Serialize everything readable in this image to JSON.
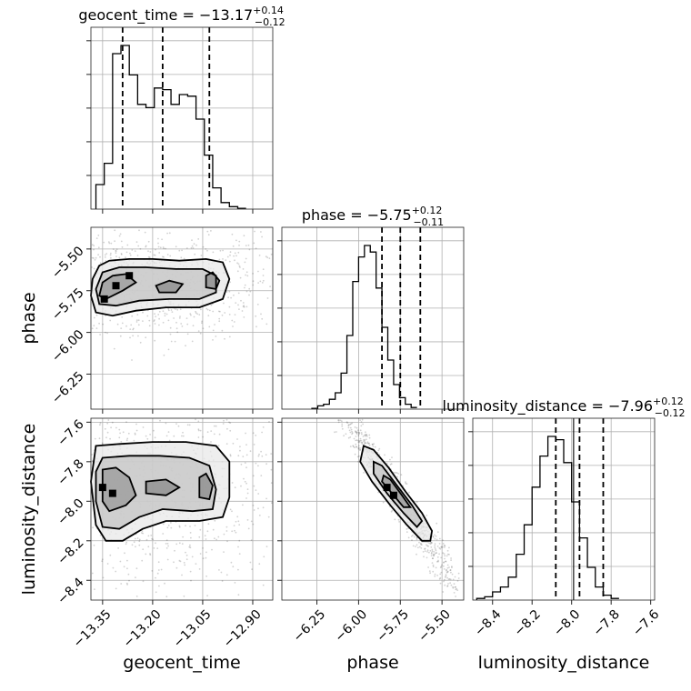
{
  "chart_data": {
    "type": "corner",
    "parameters": [
      {
        "name": "geocent_time",
        "label": "geocent_time",
        "title": {
          "lhs": "geocent_time = ",
          "value": "−13.17",
          "plus": "+0.14",
          "minus": "−0.12"
        },
        "range": [
          -13.385,
          -12.84
        ],
        "ticks": [
          -13.35,
          -13.2,
          -13.05,
          -12.9
        ],
        "tick_labels": [
          "−13.35",
          "−13.20",
          "−13.05",
          "−12.90"
        ],
        "quantiles": [
          -13.29,
          -13.17,
          -13.03
        ],
        "truth": null,
        "hist_edges_start": -13.37,
        "hist_bin_width": 0.025,
        "hist_counts": [
          0.15,
          0.28,
          0.95,
          1.0,
          0.82,
          0.64,
          0.62,
          0.74,
          0.73,
          0.64,
          0.7,
          0.69,
          0.55,
          0.33,
          0.13,
          0.04,
          0.015,
          0.005
        ]
      },
      {
        "name": "phase",
        "label": "phase",
        "title": {
          "lhs": "phase = ",
          "value": "−5.75",
          "plus": "+0.12",
          "minus": "−0.11"
        },
        "range": [
          -6.46,
          -5.37
        ],
        "ticks": [
          -6.25,
          -6.0,
          -5.75,
          -5.5
        ],
        "tick_labels": [
          "−6.25",
          "−6.00",
          "−5.75",
          "−5.50"
        ],
        "quantiles": [
          -5.86,
          -5.75,
          -5.63
        ],
        "truth": null,
        "hist_edges_start": -6.28,
        "hist_bin_width": 0.035,
        "hist_counts": [
          0.005,
          0.02,
          0.03,
          0.06,
          0.1,
          0.22,
          0.45,
          0.78,
          0.93,
          1.0,
          0.96,
          0.74,
          0.5,
          0.3,
          0.15,
          0.07,
          0.03,
          0.01
        ]
      },
      {
        "name": "luminosity_distance",
        "label": "luminosity_distance",
        "title": {
          "lhs": "luminosity_distance = ",
          "value": "−7.96",
          "plus": "+0.12",
          "minus": "−0.12"
        },
        "range": [
          -8.5,
          -7.58
        ],
        "ticks": [
          -8.4,
          -8.2,
          -8.0,
          -7.8,
          -7.6
        ],
        "tick_labels": [
          "−8.4",
          "−8.2",
          "−8.0",
          "−7.8",
          "−7.6"
        ],
        "quantiles": [
          -8.08,
          -7.96,
          -7.84
        ],
        "truth": -7.99,
        "hist_edges_start": -8.48,
        "hist_bin_width": 0.04,
        "hist_counts": [
          0.01,
          0.02,
          0.05,
          0.08,
          0.14,
          0.28,
          0.46,
          0.69,
          0.88,
          1.0,
          0.98,
          0.84,
          0.6,
          0.38,
          0.2,
          0.08,
          0.03,
          0.01
        ]
      }
    ],
    "joint_contours": [
      {
        "x_param": "geocent_time",
        "y_param": "phase",
        "levels": [
          [
            [
              -13.36,
              -5.6
            ],
            [
              -13.33,
              -5.57
            ],
            [
              -13.27,
              -5.56
            ],
            [
              -13.2,
              -5.56
            ],
            [
              -13.12,
              -5.57
            ],
            [
              -13.04,
              -5.56
            ],
            [
              -12.99,
              -5.58
            ],
            [
              -12.97,
              -5.68
            ],
            [
              -12.99,
              -5.8
            ],
            [
              -13.06,
              -5.85
            ],
            [
              -13.16,
              -5.85
            ],
            [
              -13.25,
              -5.87
            ],
            [
              -13.32,
              -5.9
            ],
            [
              -13.37,
              -5.88
            ],
            [
              -13.385,
              -5.78
            ],
            [
              -13.38,
              -5.68
            ]
          ],
          [
            [
              -13.35,
              -5.64
            ],
            [
              -13.3,
              -5.61
            ],
            [
              -13.22,
              -5.61
            ],
            [
              -13.13,
              -5.62
            ],
            [
              -13.05,
              -5.62
            ],
            [
              -13.01,
              -5.66
            ],
            [
              -13.01,
              -5.76
            ],
            [
              -13.06,
              -5.8
            ],
            [
              -13.15,
              -5.8
            ],
            [
              -13.24,
              -5.81
            ],
            [
              -13.31,
              -5.84
            ],
            [
              -13.36,
              -5.83
            ],
            [
              -13.37,
              -5.74
            ]
          ],
          [
            [
              -13.35,
              -5.7
            ],
            [
              -13.32,
              -5.66
            ],
            [
              -13.28,
              -5.65
            ],
            [
              -13.25,
              -5.7
            ],
            [
              -13.29,
              -5.75
            ],
            [
              -13.34,
              -5.8
            ],
            [
              -13.36,
              -5.78
            ]
          ],
          [
            [
              -13.19,
              -5.72
            ],
            [
              -13.15,
              -5.69
            ],
            [
              -13.11,
              -5.71
            ],
            [
              -13.13,
              -5.76
            ],
            [
              -13.18,
              -5.76
            ]
          ],
          [
            [
              -13.04,
              -5.66
            ],
            [
              -13.02,
              -5.64
            ],
            [
              -13.0,
              -5.69
            ],
            [
              -13.01,
              -5.74
            ],
            [
              -13.04,
              -5.73
            ]
          ]
        ],
        "scatter": []
      },
      {
        "x_param": "geocent_time",
        "y_param": "luminosity_distance",
        "levels": [
          [
            [
              -13.37,
              -7.72
            ],
            [
              -13.3,
              -7.71
            ],
            [
              -13.2,
              -7.7
            ],
            [
              -13.1,
              -7.7
            ],
            [
              -13.01,
              -7.72
            ],
            [
              -12.97,
              -7.8
            ],
            [
              -12.97,
              -7.98
            ],
            [
              -12.99,
              -8.08
            ],
            [
              -13.06,
              -8.1
            ],
            [
              -13.16,
              -8.1
            ],
            [
              -13.23,
              -8.14
            ],
            [
              -13.29,
              -8.2
            ],
            [
              -13.34,
              -8.2
            ],
            [
              -13.37,
              -8.12
            ],
            [
              -13.385,
              -7.9
            ]
          ],
          [
            [
              -13.35,
              -7.78
            ],
            [
              -13.27,
              -7.77
            ],
            [
              -13.18,
              -7.77
            ],
            [
              -13.09,
              -7.78
            ],
            [
              -13.03,
              -7.82
            ],
            [
              -13.01,
              -7.94
            ],
            [
              -13.02,
              -8.04
            ],
            [
              -13.08,
              -8.05
            ],
            [
              -13.17,
              -8.04
            ],
            [
              -13.24,
              -8.08
            ],
            [
              -13.3,
              -8.14
            ],
            [
              -13.35,
              -8.13
            ],
            [
              -13.37,
              -8.0
            ],
            [
              -13.37,
              -7.85
            ]
          ],
          [
            [
              -13.35,
              -7.84
            ],
            [
              -13.31,
              -7.83
            ],
            [
              -13.27,
              -7.88
            ],
            [
              -13.25,
              -7.97
            ],
            [
              -13.28,
              -8.02
            ],
            [
              -13.33,
              -8.05
            ],
            [
              -13.35,
              -8.0
            ]
          ],
          [
            [
              -13.22,
              -7.9
            ],
            [
              -13.16,
              -7.89
            ],
            [
              -13.12,
              -7.93
            ],
            [
              -13.16,
              -7.97
            ],
            [
              -13.22,
              -7.96
            ]
          ],
          [
            [
              -13.06,
              -7.88
            ],
            [
              -13.04,
              -7.86
            ],
            [
              -13.02,
              -7.92
            ],
            [
              -13.03,
              -7.99
            ],
            [
              -13.06,
              -7.98
            ]
          ]
        ],
        "scatter": []
      },
      {
        "x_param": "phase",
        "y_param": "luminosity_distance",
        "levels": [
          [
            [
              -5.97,
              -7.72
            ],
            [
              -5.91,
              -7.74
            ],
            [
              -5.82,
              -7.83
            ],
            [
              -5.72,
              -7.95
            ],
            [
              -5.62,
              -8.06
            ],
            [
              -5.56,
              -8.15
            ],
            [
              -5.57,
              -8.2
            ],
            [
              -5.62,
              -8.2
            ],
            [
              -5.71,
              -8.12
            ],
            [
              -5.81,
              -8.02
            ],
            [
              -5.92,
              -7.9
            ],
            [
              -5.99,
              -7.8
            ]
          ],
          [
            [
              -5.91,
              -7.8
            ],
            [
              -5.86,
              -7.82
            ],
            [
              -5.77,
              -7.92
            ],
            [
              -5.68,
              -8.02
            ],
            [
              -5.62,
              -8.1
            ],
            [
              -5.65,
              -8.13
            ],
            [
              -5.73,
              -8.06
            ],
            [
              -5.83,
              -7.96
            ],
            [
              -5.91,
              -7.86
            ]
          ],
          [
            [
              -5.85,
              -7.87
            ],
            [
              -5.81,
              -7.89
            ],
            [
              -5.74,
              -7.97
            ],
            [
              -5.69,
              -8.03
            ],
            [
              -5.73,
              -8.03
            ],
            [
              -5.8,
              -7.96
            ],
            [
              -5.86,
              -7.9
            ]
          ]
        ],
        "scatter": []
      }
    ],
    "hist_peaks": [
      {
        "x_param": "geocent_time",
        "y_param": "phase",
        "points": [
          [
            -13.345,
            -5.8
          ],
          [
            -13.31,
            -5.72
          ],
          [
            -13.27,
            -5.66
          ]
        ]
      },
      {
        "x_param": "geocent_time",
        "y_param": "luminosity_distance",
        "points": [
          [
            -13.35,
            -7.93
          ],
          [
            -13.32,
            -7.96
          ]
        ]
      },
      {
        "x_param": "phase",
        "y_param": "luminosity_distance",
        "points": [
          [
            -5.83,
            -7.93
          ],
          [
            -5.79,
            -7.97
          ]
        ]
      }
    ]
  }
}
